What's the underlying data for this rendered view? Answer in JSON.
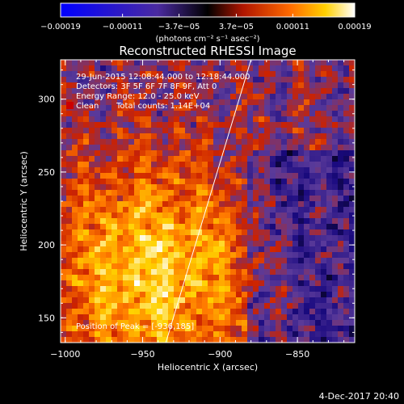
{
  "chart_data": {
    "type": "heatmap",
    "title": "Reconstructed RHESSI Image",
    "xlabel": "Heliocentric X (arcsec)",
    "ylabel": "Heliocentric Y (arcsec)",
    "xlim": [
      -1003,
      -813
    ],
    "ylim": [
      133,
      327
    ],
    "xticks": [
      -1000,
      -950,
      -900,
      -850
    ],
    "xtick_labels": [
      "−1000",
      "−950",
      "−900",
      "−850"
    ],
    "yticks": [
      150,
      200,
      250,
      300
    ],
    "ytick_labels": [
      "150",
      "200",
      "250",
      "300"
    ],
    "colorbar": {
      "range": [
        -0.00019,
        0.00019
      ],
      "ticks": [
        -0.00019,
        -0.00011,
        -3.7e-05,
        3.7e-05,
        0.00011,
        0.00019
      ],
      "tick_labels": [
        "−0.00019",
        "−0.00011",
        "−3.7e−05",
        "3.7e−05",
        "0.00011",
        "0.00019"
      ],
      "unit_label": "(photons cm⁻² s⁻¹ asec⁻²)"
    },
    "annotations": {
      "time_range": "29-Jun-2015 12:08:44.000 to 12:18:44.000",
      "detectors": "Detectors: 3F 5F 6F 7F 8F 9F, Att 0",
      "energy_range": "Energy Range: 12.0 - 25.0 keV",
      "method": "Clean",
      "total_counts": "Total counts: 1.14E+04",
      "peak": "Position of Peak = [-936,185]"
    },
    "peak_position": [
      -936,
      185
    ],
    "limb_line": [
      [
        -935,
        133
      ],
      [
        -880,
        327
      ]
    ],
    "grid": false,
    "colormap": [
      "#000000",
      "#1a0a80",
      "#5a3a9a",
      "#cc2200",
      "#ff7a00",
      "#ffd200",
      "#ffffff"
    ]
  },
  "footer": {
    "date": "4-Dec-2017 20:40"
  }
}
